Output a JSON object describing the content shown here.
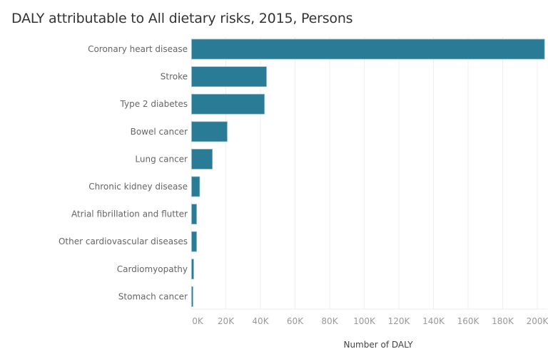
{
  "chart_data": {
    "type": "bar",
    "orientation": "horizontal",
    "title": "DALY attributable to All dietary risks, 2015, Persons",
    "xlabel": "Number of DALY",
    "ylabel": "",
    "categories": [
      "Coronary heart disease",
      "Stroke",
      "Type 2 diabetes",
      "Bowel cancer",
      "Lung cancer",
      "Chronic kidney disease",
      "Atrial fibrillation and flutter",
      "Other cardiovascular diseases",
      "Cardiomyopathy",
      "Stomach cancer"
    ],
    "values": [
      204000,
      43300,
      42100,
      20600,
      12000,
      4700,
      2900,
      2900,
      1200,
      800
    ],
    "xlim": [
      0,
      205000
    ],
    "ticks": [
      0,
      20000,
      40000,
      60000,
      80000,
      100000,
      120000,
      140000,
      160000,
      180000,
      200000
    ],
    "tick_labels": [
      "0K",
      "20K",
      "40K",
      "60K",
      "80K",
      "100K",
      "120K",
      "140K",
      "160K",
      "180K",
      "200K"
    ],
    "grid": true,
    "colors": {
      "bar": "#2a7b96",
      "bar_outline": "#8fbccb",
      "grid": "#efefef"
    }
  }
}
